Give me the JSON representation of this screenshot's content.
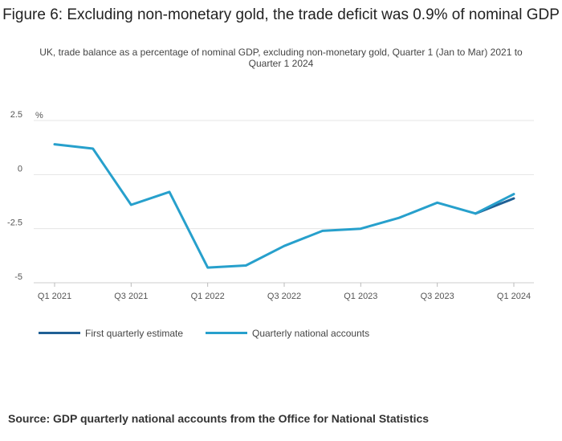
{
  "title": "Figure 6: Excluding non-monetary gold, the trade deficit was 0.9% of nominal GDP",
  "subtitle": "UK, trade balance as a percentage of nominal GDP, excluding non-monetary gold, Quarter 1 (Jan to Mar) 2021 to Quarter 1 2024",
  "source": "Source: GDP quarterly national accounts from the Office for National Statistics",
  "colors": {
    "first_estimate": "#206095",
    "national_accounts": "#27a0cc",
    "grid": "#e4e4e4",
    "axis_text": "#555555"
  },
  "chart_data": {
    "type": "line",
    "ylabel": "%",
    "ylim": [
      -5,
      2.5
    ],
    "yticks": [
      2.5,
      0,
      -2.5,
      -5
    ],
    "ytick_labels": [
      "2.5",
      "0",
      "-2.5",
      "-5"
    ],
    "categories": [
      "Q1 2021",
      "Q2 2021",
      "Q3 2021",
      "Q4 2021",
      "Q1 2022",
      "Q2 2022",
      "Q3 2022",
      "Q4 2022",
      "Q1 2023",
      "Q2 2023",
      "Q3 2023",
      "Q4 2023",
      "Q1 2024"
    ],
    "xtick_labels": [
      {
        "index": 0,
        "label": "Q1 2021"
      },
      {
        "index": 2,
        "label": "Q3 2021"
      },
      {
        "index": 4,
        "label": "Q1 2022"
      },
      {
        "index": 6,
        "label": "Q3 2022"
      },
      {
        "index": 8,
        "label": "Q1 2023"
      },
      {
        "index": 10,
        "label": "Q3 2023"
      },
      {
        "index": 12,
        "label": "Q1 2024"
      }
    ],
    "series": [
      {
        "name": "First quarterly estimate",
        "color": "#206095",
        "values": [
          null,
          null,
          null,
          null,
          null,
          null,
          null,
          null,
          null,
          null,
          null,
          -1.8,
          -1.1
        ]
      },
      {
        "name": "Quarterly national accounts",
        "color": "#27a0cc",
        "values": [
          1.4,
          1.2,
          -1.4,
          -0.8,
          -4.3,
          -4.2,
          -3.3,
          -2.6,
          -2.5,
          -2.0,
          -1.3,
          -1.8,
          -0.9
        ]
      }
    ]
  }
}
